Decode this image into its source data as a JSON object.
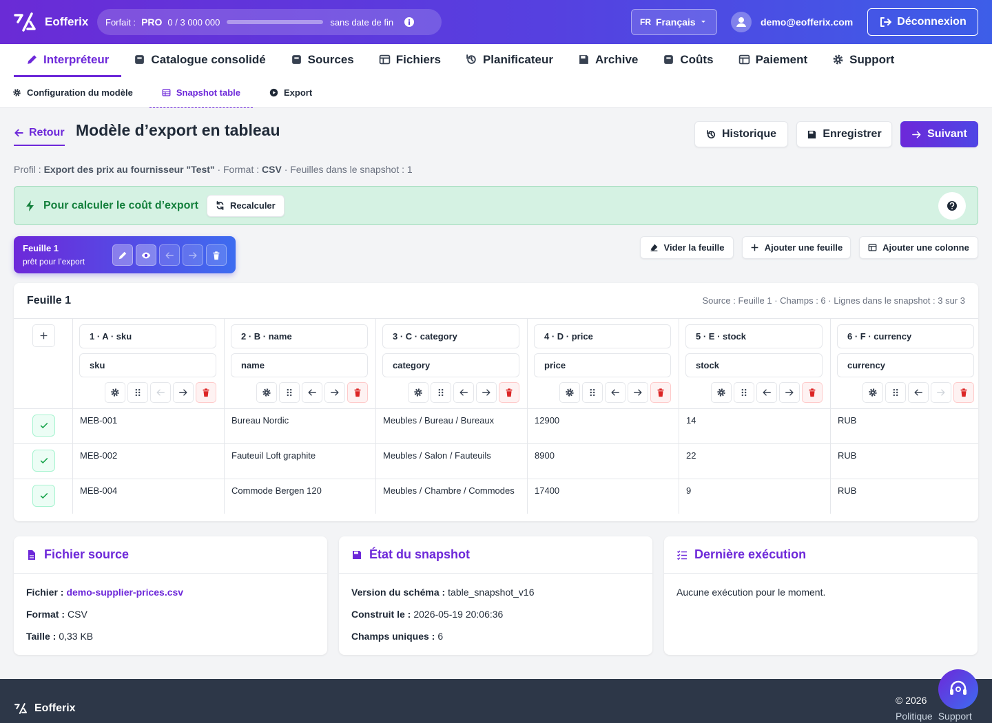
{
  "header": {
    "brand": "Eofferix",
    "plan_label": "Forfait :",
    "plan": "PRO",
    "usage": "0 / 3 000 000",
    "validity": "sans date de fin",
    "language_code": "FR",
    "language": "Français",
    "user": "demo@eofferix.com",
    "logout": "Déconnexion"
  },
  "nav": {
    "tabs": [
      "Interpréteur",
      "Catalogue consolidé",
      "Sources",
      "Fichiers",
      "Planificateur",
      "Archive",
      "Coûts",
      "Paiement",
      "Support"
    ],
    "subtabs": [
      "Configuration du modèle",
      "Snapshot table",
      "Export"
    ]
  },
  "page": {
    "back": "Retour",
    "title": "Modèle d’export en tableau",
    "actions": [
      "Historique",
      "Enregistrer",
      "Suivant"
    ],
    "profile_label": "Profil :",
    "profile": "Export des prix au fournisseur \"Test\"",
    "format_label": "· Format :",
    "format": "CSV",
    "sheets": "· Feuilles dans le snapshot : 1"
  },
  "banner": {
    "text": "Pour calculer le coût d’export",
    "button": "Recalculer"
  },
  "sheet_tab": {
    "name": "Feuille 1",
    "status": "prêt pour l’export"
  },
  "sheet_actions": [
    "Vider la feuille",
    "Ajouter une feuille",
    "Ajouter une colonne"
  ],
  "table": {
    "title": "Feuille 1",
    "meta": "Source : Feuille 1 · Champs : 6 · Lignes dans le snapshot : 3 sur 3",
    "columns": [
      {
        "header": "1 · A · sku",
        "field": "sku"
      },
      {
        "header": "2 · B · name",
        "field": "name"
      },
      {
        "header": "3 · C · category",
        "field": "category"
      },
      {
        "header": "4 · D · price",
        "field": "price"
      },
      {
        "header": "5 · E · stock",
        "field": "stock"
      },
      {
        "header": "6 · F · currency",
        "field": "currency"
      }
    ],
    "rows": [
      [
        "MEB-001",
        "Bureau Nordic",
        "Meubles / Bureau / Bureaux",
        "12900",
        "14",
        "RUB"
      ],
      [
        "MEB-002",
        "Fauteuil Loft graphite",
        "Meubles / Salon / Fauteuils",
        "8900",
        "22",
        "RUB"
      ],
      [
        "MEB-004",
        "Commode Bergen 120",
        "Meubles / Chambre / Commodes",
        "17400",
        "9",
        "RUB"
      ]
    ]
  },
  "cards": [
    {
      "title": "Fichier source",
      "items": [
        {
          "label": "Fichier :",
          "value": "demo-supplier-prices.csv"
        },
        {
          "label": "Format :",
          "value": "CSV"
        },
        {
          "label": "Taille :",
          "value": "0,33 KB"
        }
      ]
    },
    {
      "title": "État du snapshot",
      "items": [
        {
          "label": "Version du schéma :",
          "value": "table_snapshot_v16"
        },
        {
          "label": "Construit le :",
          "value": "2026-05-19 20:06:36"
        },
        {
          "label": "Champs uniques :",
          "value": "6"
        }
      ]
    },
    {
      "title": "Dernière exécution",
      "text": "Aucune exécution pour le moment."
    }
  ],
  "footer": {
    "brand": "Eofferix",
    "copyright": "© 2026",
    "links": [
      "Politique",
      "Support"
    ]
  }
}
